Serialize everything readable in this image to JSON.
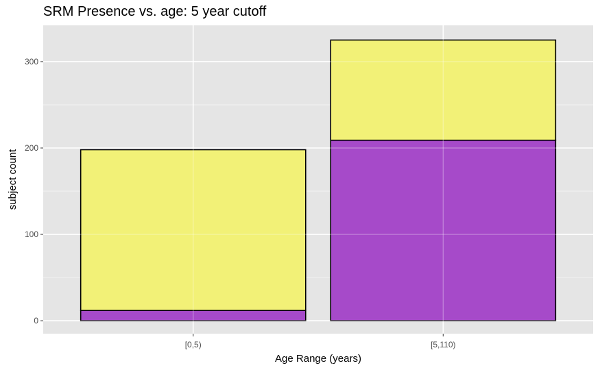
{
  "chart_data": {
    "type": "bar",
    "stacked": true,
    "title": "SRM Presence vs. age: 5 year cutoff",
    "xlabel": "Age Range (years)",
    "ylabel": "subject count",
    "categories": [
      "[0,5)",
      "[5,110)"
    ],
    "series": [
      {
        "values": [
          12,
          209
        ],
        "color": "#a64ac9"
      },
      {
        "values": [
          186,
          116
        ],
        "color": "#f2f177"
      }
    ],
    "ylim": [
      -15,
      342
    ],
    "yticks": [
      0,
      100,
      200,
      300
    ],
    "grid": true,
    "panel_background": "#e5e5e5",
    "bar_outline": "#000000"
  }
}
